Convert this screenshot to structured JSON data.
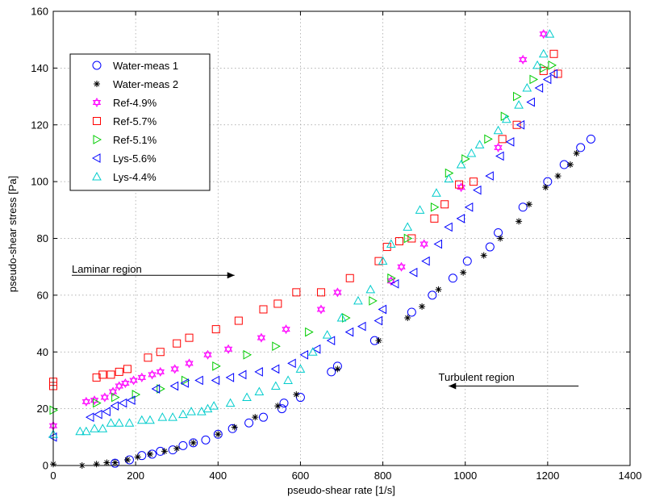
{
  "chart_data": {
    "type": "scatter",
    "xlabel": "pseudo-shear rate [1/s]",
    "ylabel": "pseudo-shear stress [Pa]",
    "xlim": [
      0,
      1400
    ],
    "ylim": [
      0,
      160
    ],
    "xticks": [
      0,
      200,
      400,
      600,
      800,
      1000,
      1200,
      1400
    ],
    "yticks": [
      0,
      20,
      40,
      60,
      80,
      100,
      120,
      140,
      160
    ],
    "grid": true,
    "legend_position": "top-left",
    "annotations": [
      {
        "text": "Laminar region",
        "label_x": 45,
        "label_y": 69,
        "arrow_from": [
          45,
          67
        ],
        "arrow_to": [
          440,
          67
        ]
      },
      {
        "text": "Turbulent region",
        "label_x": 935,
        "label_y": 31,
        "arrow_from": [
          1275,
          28
        ],
        "arrow_to": [
          960,
          28
        ]
      }
    ],
    "series": [
      {
        "name": "Water-meas 1",
        "marker": "circle",
        "color": "#0000ff",
        "points": [
          [
            150,
            0.8
          ],
          [
            185,
            2
          ],
          [
            215,
            3.5
          ],
          [
            240,
            4
          ],
          [
            260,
            5
          ],
          [
            290,
            5.5
          ],
          [
            315,
            7
          ],
          [
            340,
            8
          ],
          [
            370,
            9
          ],
          [
            400,
            11
          ],
          [
            435,
            13
          ],
          [
            475,
            15
          ],
          [
            510,
            17
          ],
          [
            555,
            20
          ],
          [
            560,
            22
          ],
          [
            600,
            24
          ],
          [
            675,
            33
          ],
          [
            690,
            35
          ],
          [
            780,
            44
          ],
          [
            870,
            54
          ],
          [
            920,
            60
          ],
          [
            970,
            66
          ],
          [
            1005,
            72
          ],
          [
            1060,
            77
          ],
          [
            1080,
            82
          ],
          [
            1140,
            91
          ],
          [
            1200,
            100
          ],
          [
            1240,
            106
          ],
          [
            1280,
            112
          ],
          [
            1305,
            115
          ]
        ]
      },
      {
        "name": "Water-meas 2",
        "marker": "asterisk",
        "color": "#000000",
        "points": [
          [
            0,
            0.5
          ],
          [
            70,
            0
          ],
          [
            105,
            0.5
          ],
          [
            130,
            1
          ],
          [
            150,
            1
          ],
          [
            180,
            2
          ],
          [
            205,
            3
          ],
          [
            235,
            4
          ],
          [
            270,
            5
          ],
          [
            300,
            6
          ],
          [
            340,
            8
          ],
          [
            400,
            11
          ],
          [
            440,
            13.5
          ],
          [
            490,
            17
          ],
          [
            545,
            21
          ],
          [
            590,
            25
          ],
          [
            690,
            34
          ],
          [
            790,
            44
          ],
          [
            860,
            52
          ],
          [
            895,
            56
          ],
          [
            935,
            62
          ],
          [
            995,
            68
          ],
          [
            1045,
            74
          ],
          [
            1085,
            80
          ],
          [
            1130,
            86
          ],
          [
            1155,
            92
          ],
          [
            1195,
            98
          ],
          [
            1225,
            102
          ],
          [
            1255,
            106
          ],
          [
            1270,
            110
          ]
        ]
      },
      {
        "name": "Ref-4.9%",
        "marker": "hexagram",
        "color": "#ff00ff",
        "points": [
          [
            0,
            14
          ],
          [
            80,
            22.5
          ],
          [
            100,
            23
          ],
          [
            125,
            24
          ],
          [
            145,
            26
          ],
          [
            160,
            28
          ],
          [
            175,
            29
          ],
          [
            195,
            30
          ],
          [
            215,
            31
          ],
          [
            240,
            32
          ],
          [
            260,
            33
          ],
          [
            295,
            34
          ],
          [
            330,
            36
          ],
          [
            375,
            39
          ],
          [
            425,
            41
          ],
          [
            505,
            45
          ],
          [
            565,
            48
          ],
          [
            650,
            55
          ],
          [
            690,
            61
          ],
          [
            820,
            65
          ],
          [
            845,
            70
          ],
          [
            900,
            78
          ],
          [
            990,
            98
          ],
          [
            1080,
            112
          ],
          [
            1140,
            143
          ],
          [
            1190,
            152
          ]
        ]
      },
      {
        "name": "Ref-5.7%",
        "marker": "square",
        "color": "#ff0000",
        "points": [
          [
            0,
            28
          ],
          [
            0,
            29.5
          ],
          [
            105,
            31
          ],
          [
            120,
            32
          ],
          [
            140,
            32
          ],
          [
            160,
            33
          ],
          [
            180,
            34
          ],
          [
            230,
            38
          ],
          [
            260,
            40
          ],
          [
            300,
            43
          ],
          [
            330,
            45
          ],
          [
            395,
            48
          ],
          [
            450,
            51
          ],
          [
            510,
            55
          ],
          [
            545,
            57
          ],
          [
            590,
            61
          ],
          [
            650,
            61
          ],
          [
            720,
            66
          ],
          [
            790,
            72
          ],
          [
            810,
            77
          ],
          [
            840,
            79
          ],
          [
            870,
            80
          ],
          [
            925,
            87
          ],
          [
            950,
            92
          ],
          [
            985,
            99
          ],
          [
            1020,
            100
          ],
          [
            1090,
            115
          ],
          [
            1125,
            120
          ],
          [
            1190,
            139
          ],
          [
            1215,
            145
          ],
          [
            1225,
            138
          ]
        ]
      },
      {
        "name": "Ref-5.1%",
        "marker": "triangle-right",
        "color": "#00cc00",
        "points": [
          [
            0,
            19.5
          ],
          [
            105,
            22
          ],
          [
            150,
            24
          ],
          [
            200,
            25
          ],
          [
            260,
            27
          ],
          [
            320,
            30
          ],
          [
            395,
            35
          ],
          [
            470,
            39
          ],
          [
            540,
            42
          ],
          [
            620,
            47
          ],
          [
            710,
            52
          ],
          [
            775,
            58
          ],
          [
            820,
            66
          ],
          [
            860,
            80
          ],
          [
            925,
            91
          ],
          [
            960,
            103
          ],
          [
            1000,
            108
          ],
          [
            1055,
            115
          ],
          [
            1095,
            123
          ],
          [
            1125,
            130
          ],
          [
            1165,
            136
          ],
          [
            1190,
            140
          ],
          [
            1210,
            141
          ]
        ]
      },
      {
        "name": "Lys-5.6%",
        "marker": "triangle-left",
        "color": "#0000ff",
        "points": [
          [
            0,
            10
          ],
          [
            90,
            17
          ],
          [
            110,
            18
          ],
          [
            130,
            19
          ],
          [
            150,
            21
          ],
          [
            170,
            22
          ],
          [
            190,
            23
          ],
          [
            250,
            27
          ],
          [
            295,
            28
          ],
          [
            320,
            29
          ],
          [
            355,
            30
          ],
          [
            395,
            30
          ],
          [
            430,
            31
          ],
          [
            460,
            32
          ],
          [
            500,
            33
          ],
          [
            540,
            34
          ],
          [
            580,
            36
          ],
          [
            610,
            39
          ],
          [
            640,
            41
          ],
          [
            675,
            44
          ],
          [
            720,
            47
          ],
          [
            750,
            49
          ],
          [
            790,
            51
          ],
          [
            800,
            55
          ],
          [
            830,
            64
          ],
          [
            875,
            68
          ],
          [
            905,
            72
          ],
          [
            935,
            78
          ],
          [
            960,
            84
          ],
          [
            990,
            87
          ],
          [
            1010,
            91
          ],
          [
            1030,
            97
          ],
          [
            1060,
            102
          ],
          [
            1085,
            109
          ],
          [
            1110,
            114
          ],
          [
            1135,
            120
          ],
          [
            1160,
            128
          ],
          [
            1180,
            133
          ],
          [
            1200,
            136
          ],
          [
            1215,
            138
          ]
        ]
      },
      {
        "name": "Lys-4.4%",
        "marker": "triangle-up",
        "color": "#00cccc",
        "points": [
          [
            0,
            11
          ],
          [
            65,
            12
          ],
          [
            80,
            12
          ],
          [
            100,
            13
          ],
          [
            120,
            13
          ],
          [
            140,
            15
          ],
          [
            160,
            15
          ],
          [
            185,
            15
          ],
          [
            215,
            16
          ],
          [
            235,
            16
          ],
          [
            265,
            17
          ],
          [
            290,
            17
          ],
          [
            315,
            18
          ],
          [
            335,
            19
          ],
          [
            360,
            19
          ],
          [
            375,
            20
          ],
          [
            390,
            21
          ],
          [
            430,
            22
          ],
          [
            470,
            24
          ],
          [
            500,
            26
          ],
          [
            540,
            28
          ],
          [
            570,
            30
          ],
          [
            600,
            34
          ],
          [
            630,
            40
          ],
          [
            665,
            46
          ],
          [
            700,
            52
          ],
          [
            740,
            58
          ],
          [
            770,
            62
          ],
          [
            800,
            72
          ],
          [
            820,
            78
          ],
          [
            860,
            84
          ],
          [
            890,
            90
          ],
          [
            930,
            96
          ],
          [
            960,
            101
          ],
          [
            990,
            106
          ],
          [
            1015,
            110
          ],
          [
            1035,
            113
          ],
          [
            1080,
            118
          ],
          [
            1100,
            122
          ],
          [
            1130,
            127
          ],
          [
            1150,
            133
          ],
          [
            1175,
            141
          ],
          [
            1190,
            145
          ],
          [
            1205,
            152
          ]
        ]
      }
    ]
  }
}
